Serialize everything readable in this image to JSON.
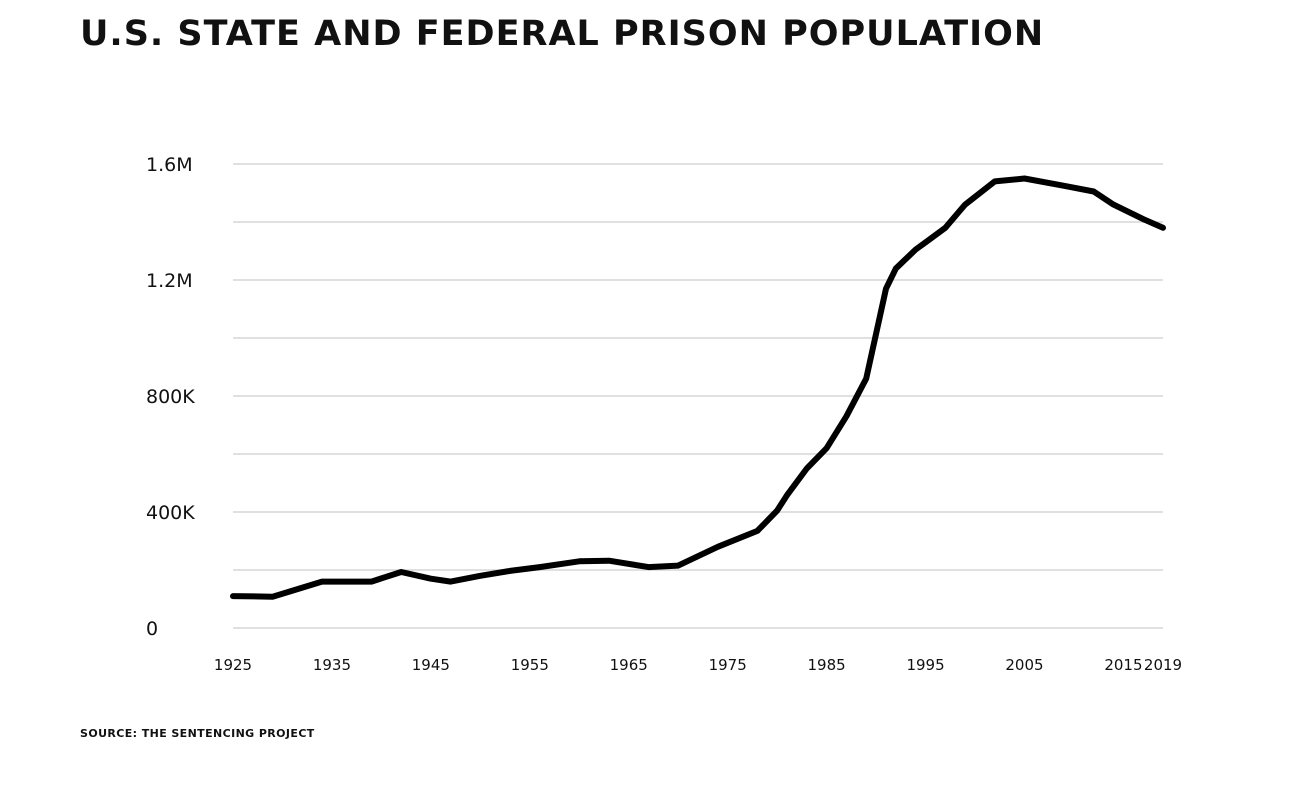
{
  "header": {
    "title": "U.S. STATE AND FEDERAL PRISON POPULATION"
  },
  "footer": {
    "source": "SOURCE: THE SENTENCING PROJECT"
  },
  "chart_data": {
    "type": "line",
    "title": "U.S. STATE AND FEDERAL PRISON POPULATION",
    "xlabel": "",
    "ylabel": "",
    "xlim": [
      1925,
      2019
    ],
    "ylim": [
      0,
      1600000
    ],
    "grid": true,
    "line_color": "#000000",
    "y_ticks": [
      {
        "value": 0,
        "label": "0"
      },
      {
        "value": 400000,
        "label": "400K"
      },
      {
        "value": 800000,
        "label": "800K"
      },
      {
        "value": 1200000,
        "label": "1.2M"
      },
      {
        "value": 1600000,
        "label": "1.6M"
      }
    ],
    "y_gridlines": [
      0,
      200000,
      400000,
      600000,
      800000,
      1000000,
      1200000,
      1400000,
      1600000
    ],
    "x_ticks": [
      {
        "value": 1925,
        "label": "1925"
      },
      {
        "value": 1935,
        "label": "1935"
      },
      {
        "value": 1945,
        "label": "1945"
      },
      {
        "value": 1955,
        "label": "1955"
      },
      {
        "value": 1965,
        "label": "1965"
      },
      {
        "value": 1975,
        "label": "1975"
      },
      {
        "value": 1985,
        "label": "1985"
      },
      {
        "value": 1995,
        "label": "1995"
      },
      {
        "value": 2005,
        "label": "2005"
      },
      {
        "value": 2015,
        "label": "2015"
      },
      {
        "value": 2019,
        "label": "2019"
      }
    ],
    "series": [
      {
        "x": [
          1925,
          1929,
          1934,
          1939,
          1942,
          1945,
          1947,
          1950,
          1953,
          1956,
          1960,
          1963,
          1967,
          1970,
          1974,
          1978,
          1980,
          1981,
          1983,
          1985,
          1987,
          1989,
          1991,
          1992,
          1994,
          1995,
          1997,
          1999,
          2002,
          2005,
          2009,
          2012,
          2014,
          2017,
          2019
        ],
        "y": [
          110000,
          108000,
          160000,
          160000,
          193000,
          170000,
          160000,
          180000,
          197000,
          210000,
          230000,
          232000,
          210000,
          215000,
          280000,
          335000,
          405000,
          458000,
          550000,
          620000,
          730000,
          860000,
          1170000,
          1240000,
          1305000,
          1330000,
          1380000,
          1460000,
          1540000,
          1550000,
          1525000,
          1505000,
          1460000,
          1410000,
          1380000
        ]
      }
    ]
  }
}
